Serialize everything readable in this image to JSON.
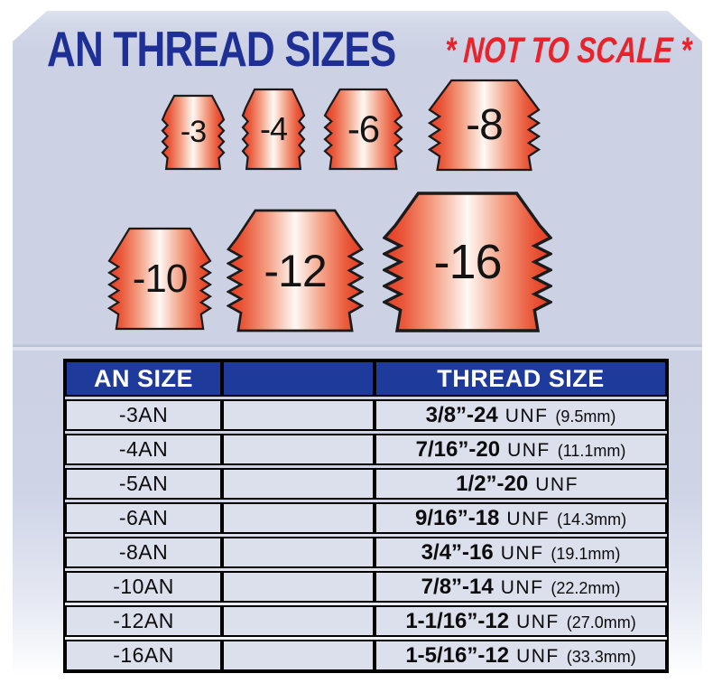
{
  "title": {
    "main": "AN THREAD SIZES",
    "note": "* NOT TO SCALE *"
  },
  "fittings": {
    "labels": [
      "-3",
      "-4",
      "-6",
      "-8",
      "-10",
      "-12",
      "-16"
    ]
  },
  "table": {
    "headers": {
      "an": "AN SIZE",
      "middle": "",
      "thread": "THREAD SIZE"
    },
    "rows": [
      {
        "an": "-3AN",
        "size": "3/8”-24",
        "std": "UNF",
        "mm": "(9.5mm)"
      },
      {
        "an": "-4AN",
        "size": "7/16”-20",
        "std": "UNF",
        "mm": "(11.1mm)"
      },
      {
        "an": "-5AN",
        "size": "1/2”-20",
        "std": "UNF",
        "mm": ""
      },
      {
        "an": "-6AN",
        "size": "9/16”-18",
        "std": "UNF",
        "mm": "(14.3mm)"
      },
      {
        "an": "-8AN",
        "size": "3/4”-16",
        "std": "UNF",
        "mm": "(19.1mm)"
      },
      {
        "an": "-10AN",
        "size": "7/8”-14",
        "std": "UNF",
        "mm": "(22.2mm)"
      },
      {
        "an": "-12AN",
        "size": "1-1/16”-12",
        "std": "UNF",
        "mm": "(27.0mm)"
      },
      {
        "an": "-16AN",
        "size": "1-5/16”-12",
        "std": "UNF",
        "mm": "(33.3mm)"
      }
    ]
  },
  "colors": {
    "panel": "#ccd2e4",
    "title_blue": "#1e2f96",
    "note_red": "#e8232c",
    "table_header_bg": "#1e3a9a",
    "table_row_bg": "#dcdfec",
    "fitting_edge_red": "#e23a22",
    "fitting_mid_pink": "#f4a287",
    "fitting_center": "#fef8f4"
  }
}
